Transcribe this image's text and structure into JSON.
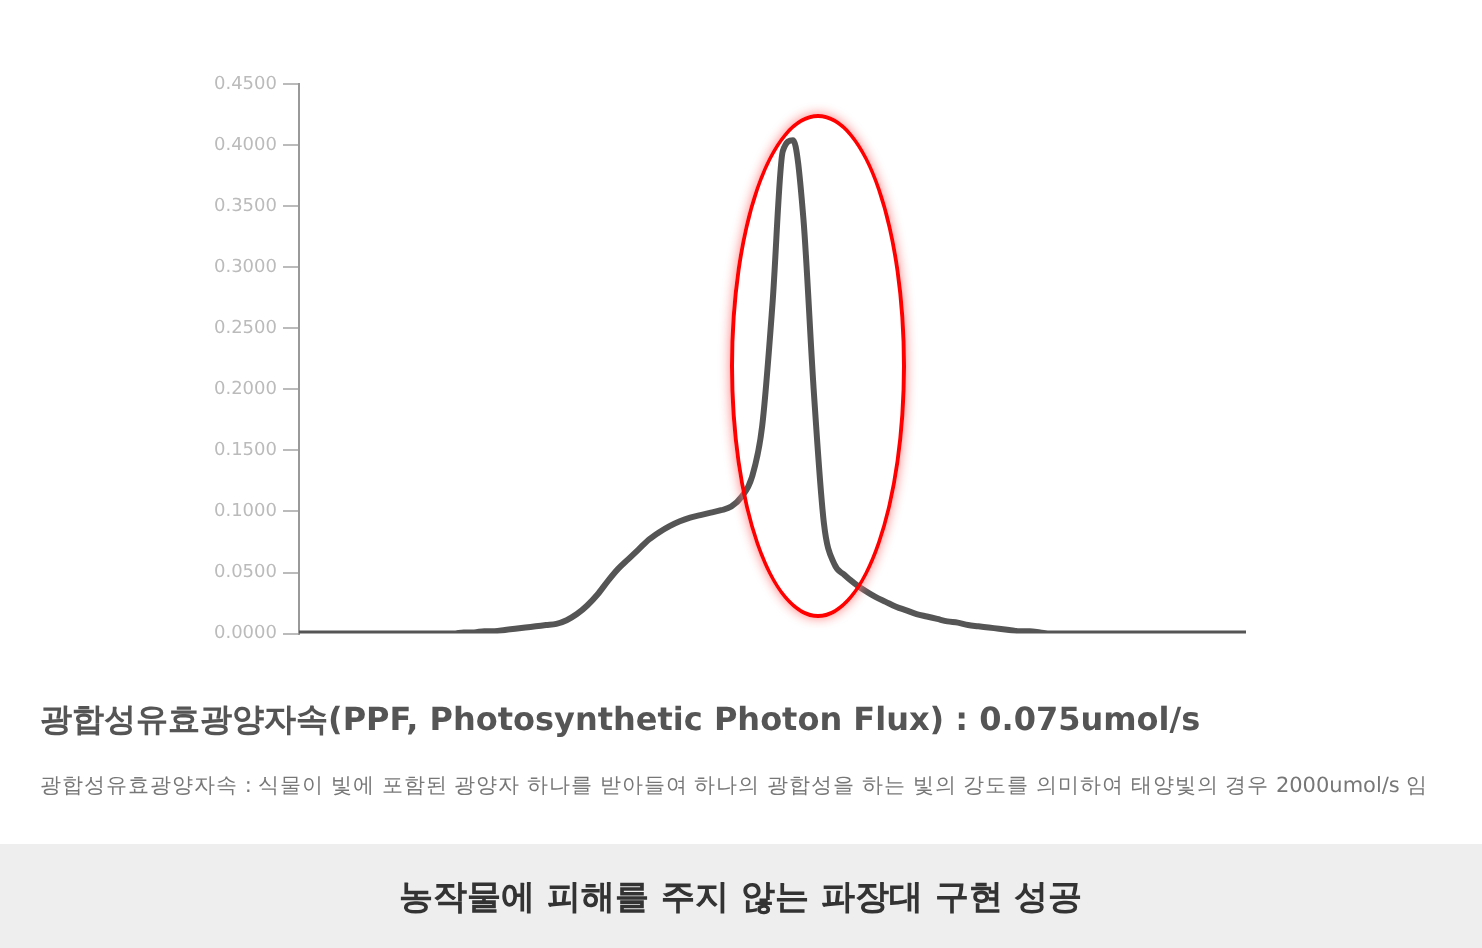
{
  "chart_data": {
    "type": "line",
    "title": "광합성유효광양자속(PPF, Photosynthetic Photon Flux) : 0.075umol/s",
    "annotations": [
      "광합성유효광양자속 : 식물이 빛에 포함된 광양자 하나를 받아들여 하나의 광합성을 하는 빛의 강도를 의미하여 태양빛의 경우 2000umol/s 임",
      "농작물에 피해를 주지 않는 파장대 구현 성공"
    ],
    "categories": [
      null,
      null,
      null,
      null,
      null,
      null,
      null,
      null,
      null,
      null,
      null,
      null,
      null,
      null,
      null,
      null,
      null,
      null,
      null,
      null,
      null,
      null,
      null,
      null,
      null,
      null,
      null,
      null,
      null,
      null,
      null,
      null,
      null,
      null,
      null,
      null,
      null,
      null,
      null,
      null,
      null,
      null,
      null,
      null,
      null,
      null,
      null,
      null,
      null,
      null,
      null,
      null,
      null,
      null,
      null,
      null,
      null,
      null,
      null,
      null,
      null,
      null,
      null,
      null,
      null,
      null,
      null,
      null,
      null,
      null,
      null,
      null,
      null,
      null,
      null,
      null,
      null,
      null,
      null,
      null,
      null,
      null,
      null,
      null,
      null,
      null,
      null,
      null,
      null,
      null,
      null,
      null,
      null
    ],
    "series": [
      {
        "color": "#555555",
        "values": [
          0,
          0,
          0,
          0,
          0,
          0,
          0,
          0,
          0,
          0,
          0,
          0,
          0,
          0,
          0,
          0,
          0.001,
          0.001,
          0.002,
          0.002,
          0.003,
          0.004,
          0.005,
          0.006,
          0.007,
          0.008,
          0.011,
          0.016,
          0.023,
          0.032,
          0.043,
          0.053,
          0.061,
          0.069,
          0.077,
          0.083,
          0.088,
          0.092,
          0.095,
          0.097,
          0.099,
          0.101,
          0.104,
          0.112,
          0.128,
          0.17,
          0.27,
          0.395,
          0.404,
          0.34,
          0.2,
          0.09,
          0.057,
          0.048,
          0.041,
          0.035,
          0.03,
          0.026,
          0.022,
          0.019,
          0.016,
          0.014,
          0.012,
          0.01,
          0.009,
          0.007,
          0.006,
          0.005,
          0.004,
          0.003,
          0.002,
          0.002,
          0.001,
          0,
          0,
          0,
          0,
          0,
          0,
          0,
          0,
          0,
          0,
          0,
          0,
          0,
          0,
          0,
          0,
          0,
          0,
          0,
          0
        ]
      }
    ],
    "ylim": [
      0,
      0.45
    ],
    "yticks": [
      {
        "value": 0,
        "label": "0.0000"
      },
      {
        "value": 0.05,
        "label": "0.0500"
      },
      {
        "value": 0.1,
        "label": "0.1000"
      },
      {
        "value": 0.15,
        "label": "0.1500"
      },
      {
        "value": 0.2,
        "label": "0.2000"
      },
      {
        "value": 0.25,
        "label": "0.2500"
      },
      {
        "value": 0.3,
        "label": "0.3000"
      },
      {
        "value": 0.35,
        "label": "0.3500"
      },
      {
        "value": 0.4,
        "label": "0.4000"
      },
      {
        "value": 0.45,
        "label": "0.4500"
      }
    ],
    "marker": "none",
    "legend": false
  }
}
